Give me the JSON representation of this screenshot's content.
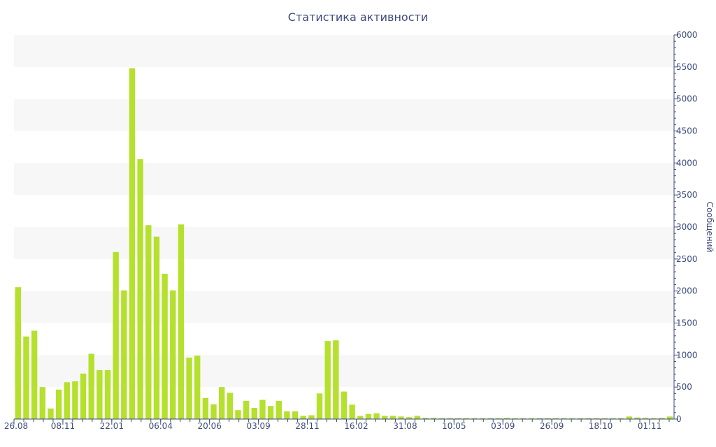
{
  "chart_data": {
    "type": "bar",
    "title": "Статистика активности",
    "ylabel": "Сообщений",
    "ylim": [
      0,
      6000
    ],
    "yticks": [
      0,
      500,
      1000,
      1500,
      2000,
      2500,
      3000,
      3500,
      4000,
      4500,
      5000,
      5500,
      6000
    ],
    "y_axis_side": "right",
    "grid": "alternating horizontal bands",
    "x_tick_labels": [
      "26.08",
      "08.11",
      "22.01",
      "06.04",
      "20.06",
      "03.09",
      "28.11",
      "16.02",
      "31.08",
      "10.05",
      "03.09",
      "26.09",
      "18.10",
      "01.11"
    ],
    "values": [
      2060,
      1290,
      1380,
      500,
      165,
      460,
      575,
      590,
      710,
      1020,
      765,
      765,
      2610,
      2010,
      5480,
      4060,
      3030,
      2850,
      2270,
      2010,
      3040,
      960,
      990,
      330,
      230,
      500,
      410,
      140,
      285,
      175,
      300,
      205,
      285,
      120,
      120,
      50,
      60,
      400,
      1220,
      1230,
      430,
      225,
      50,
      80,
      90,
      50,
      50,
      40,
      30,
      50,
      20,
      20,
      15,
      15,
      15,
      15,
      15,
      15,
      15,
      15,
      20,
      15,
      15,
      15,
      15,
      15,
      15,
      15,
      15,
      15,
      15,
      15,
      15,
      15,
      15,
      40,
      25,
      20,
      15,
      20,
      40
    ],
    "colors": {
      "bar": "#b5e02d",
      "band": "#f7f7f7",
      "axis": "#3d4a7a"
    }
  }
}
